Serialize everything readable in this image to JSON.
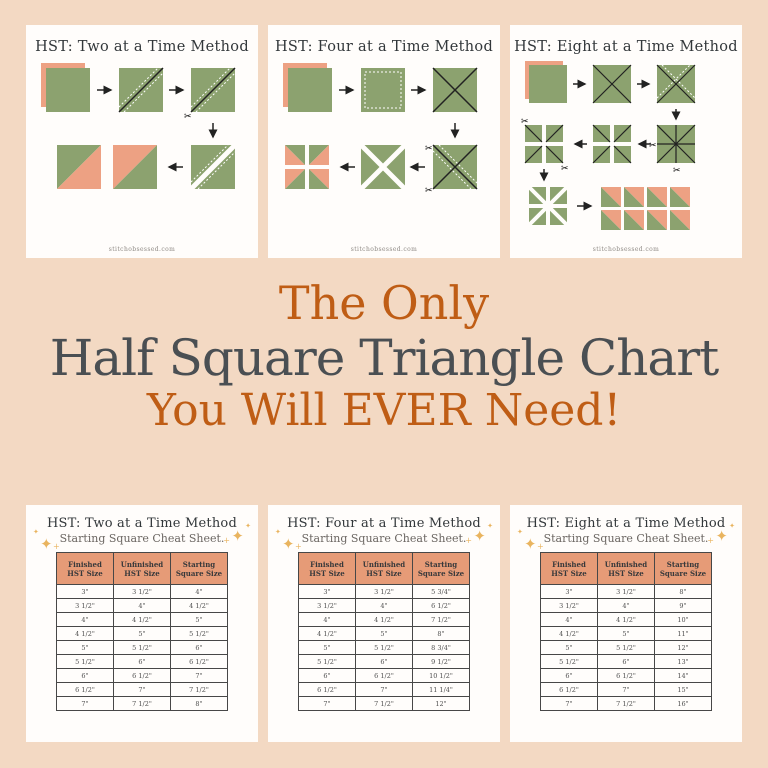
{
  "colors": {
    "bg": "#f3d9c3",
    "card": "#fffdfb",
    "green": "#8ca26f",
    "peach": "#eda183",
    "accent": "#bf5d15",
    "dark": "#4a4f53",
    "tableHeader": "#e69b77",
    "gold": "#e9b45f",
    "line": "#222222",
    "muted": "#8f8a85"
  },
  "headline": {
    "line1": "The Only",
    "line2": "Half Square Triangle Chart",
    "line3": "You Will EVER Need!"
  },
  "method_cards": [
    {
      "title": "HST: Two at a Time Method",
      "watermark": "stitchobsessed.com"
    },
    {
      "title": "HST: Four at a Time Method",
      "watermark": "stitchobsessed.com"
    },
    {
      "title": "HST: Eight at a Time Method",
      "watermark": "stitchobsessed.com"
    }
  ],
  "cheat_sheets": [
    {
      "title": "HST: Two at a Time Method",
      "subtitle": "Starting Square Cheat Sheet.",
      "columns": [
        "Finished HST Size",
        "Unfinished HST Size",
        "Starting Square Size"
      ],
      "rows": [
        [
          "3\"",
          "3 1/2\"",
          "4\""
        ],
        [
          "3 1/2\"",
          "4\"",
          "4 1/2\""
        ],
        [
          "4\"",
          "4 1/2\"",
          "5\""
        ],
        [
          "4 1/2\"",
          "5\"",
          "5 1/2\""
        ],
        [
          "5\"",
          "5 1/2\"",
          "6\""
        ],
        [
          "5 1/2\"",
          "6\"",
          "6 1/2\""
        ],
        [
          "6\"",
          "6 1/2\"",
          "7\""
        ],
        [
          "6 1/2\"",
          "7\"",
          "7 1/2\""
        ],
        [
          "7\"",
          "7 1/2\"",
          "8\""
        ]
      ]
    },
    {
      "title": "HST: Four at a Time Method",
      "subtitle": "Starting Square Cheat Sheet.",
      "columns": [
        "Finished HST Size",
        "Unfinished HST Size",
        "Starting Square Size"
      ],
      "rows": [
        [
          "3\"",
          "3 1/2\"",
          "5 3/4\""
        ],
        [
          "3 1/2\"",
          "4\"",
          "6 1/2\""
        ],
        [
          "4\"",
          "4 1/2\"",
          "7 1/2\""
        ],
        [
          "4 1/2\"",
          "5\"",
          "8\""
        ],
        [
          "5\"",
          "5 1/2\"",
          "8 3/4\""
        ],
        [
          "5 1/2\"",
          "6\"",
          "9 1/2\""
        ],
        [
          "6\"",
          "6 1/2\"",
          "10 1/2\""
        ],
        [
          "6 1/2\"",
          "7\"",
          "11 1/4\""
        ],
        [
          "7\"",
          "7 1/2\"",
          "12\""
        ]
      ]
    },
    {
      "title": "HST: Eight at a Time Method",
      "subtitle": "Starting Square Cheat Sheet.",
      "columns": [
        "Finished HST Size",
        "Unfinished HST Size",
        "Starting Square Size"
      ],
      "rows": [
        [
          "3\"",
          "3 1/2\"",
          "8\""
        ],
        [
          "3 1/2\"",
          "4\"",
          "9\""
        ],
        [
          "4\"",
          "4 1/2\"",
          "10\""
        ],
        [
          "4 1/2\"",
          "5\"",
          "11\""
        ],
        [
          "5\"",
          "5 1/2\"",
          "12\""
        ],
        [
          "5 1/2\"",
          "6\"",
          "13\""
        ],
        [
          "6\"",
          "6 1/2\"",
          "14\""
        ],
        [
          "6 1/2\"",
          "7\"",
          "15\""
        ],
        [
          "7\"",
          "7 1/2\"",
          "16\""
        ]
      ]
    }
  ]
}
